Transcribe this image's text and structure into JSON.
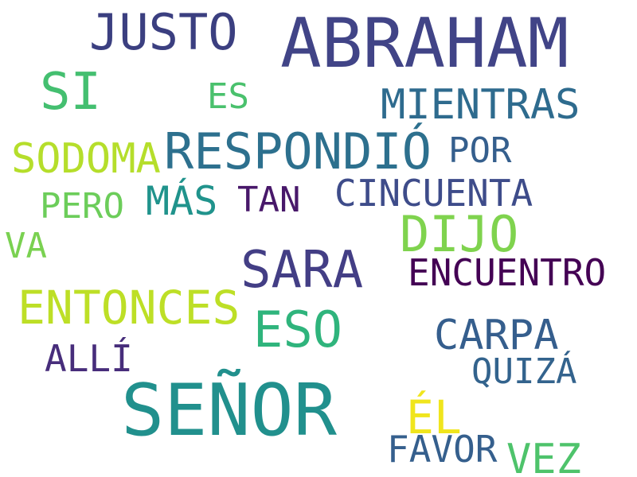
{
  "words": [
    {
      "text": "ABRAHAM",
      "color": "#414487"
    },
    {
      "text": "JUSTO",
      "color": "#3b3f80"
    },
    {
      "text": "SI",
      "color": "#44bf70"
    },
    {
      "text": "ES",
      "color": "#4ac16d"
    },
    {
      "text": "MIENTRAS",
      "color": "#2e6b8e"
    },
    {
      "text": "RESPONDIÓ",
      "color": "#2d708e"
    },
    {
      "text": "POR",
      "color": "#355f8d"
    },
    {
      "text": "SODOMA",
      "color": "#b5de2b"
    },
    {
      "text": "MÁS",
      "color": "#20938c"
    },
    {
      "text": "TAN",
      "color": "#48186a"
    },
    {
      "text": "CINCUENTA",
      "color": "#3e4c8a"
    },
    {
      "text": "PERO",
      "color": "#6ccd5a"
    },
    {
      "text": "VA",
      "color": "#7ad151"
    },
    {
      "text": "DIJO",
      "color": "#7fd34e"
    },
    {
      "text": "SARA",
      "color": "#433e85"
    },
    {
      "text": "ENCUENTRO",
      "color": "#440154"
    },
    {
      "text": "ENTONCES",
      "color": "#bddf26"
    },
    {
      "text": "ESO",
      "color": "#2fb47c"
    },
    {
      "text": "CARPA",
      "color": "#355e8d"
    },
    {
      "text": "ALLÍ",
      "color": "#472d7b"
    },
    {
      "text": "QUIZÁ",
      "color": "#33638d"
    },
    {
      "text": "SEÑOR",
      "color": "#21908d"
    },
    {
      "text": "ÉL",
      "color": "#f0e51d"
    },
    {
      "text": "FAVOR",
      "color": "#355f8d"
    },
    {
      "text": "VEZ",
      "color": "#4ec36b"
    }
  ]
}
